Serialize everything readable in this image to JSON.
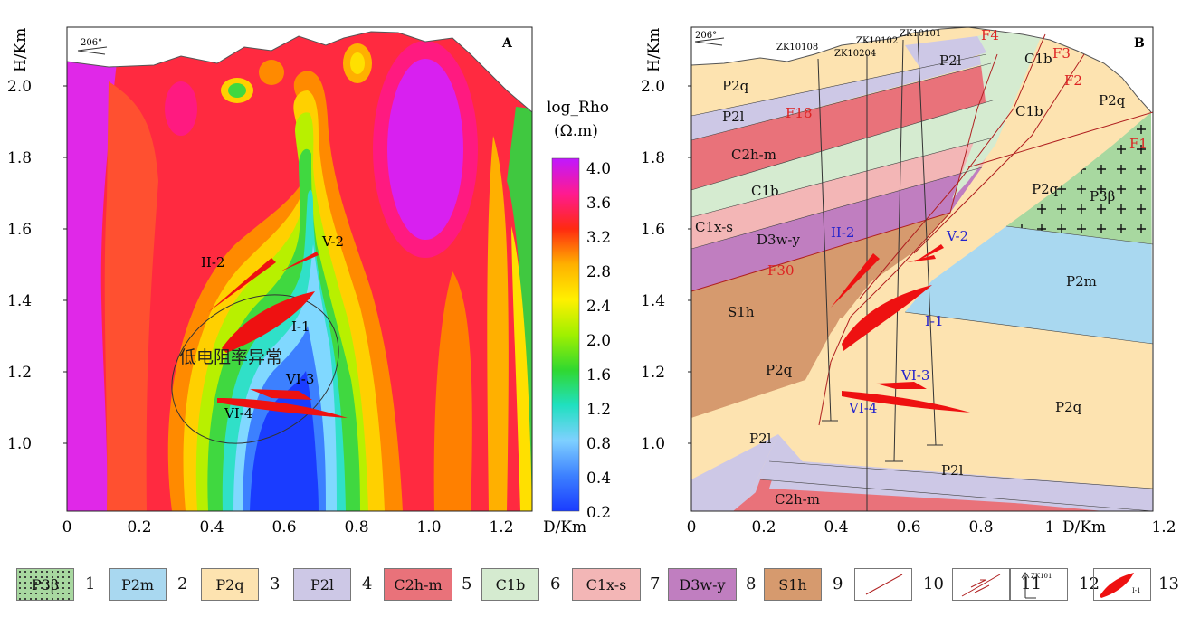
{
  "panelA": {
    "label": "A",
    "azimuth": "206°",
    "y_axis_title": "H/Km",
    "x_axis_title": "D/Km",
    "y_ticks": [
      "1.0",
      "1.2",
      "1.4",
      "1.6",
      "1.8",
      "2.0"
    ],
    "x_ticks": [
      "0",
      "0.2",
      "0.4",
      "0.6",
      "0.8",
      "1.0",
      "1.2"
    ],
    "colorbar_title": "log_Rho",
    "colorbar_unit": "(Ω.m)",
    "colorbar_ticks": [
      "0.2",
      "0.4",
      "0.8",
      "1.2",
      "1.6",
      "2.0",
      "2.4",
      "2.8",
      "3.2",
      "3.6",
      "4.0"
    ],
    "anomaly_text": "低电阻率异常",
    "ore_labels": [
      "II-2",
      "V-2",
      "I-1",
      "VI-3",
      "VI-4"
    ]
  },
  "panelB": {
    "label": "B",
    "azimuth": "206°",
    "y_axis_title": "H/Km",
    "x_axis_title": "D/Km",
    "y_ticks": [
      "1.0",
      "1.2",
      "1.4",
      "1.6",
      "1.8",
      "2.0"
    ],
    "x_ticks": [
      "0",
      "0.2",
      "0.4",
      "0.6",
      "0.8",
      "1",
      "1.2"
    ],
    "boreholes": [
      "ZK10108",
      "ZK10204",
      "ZK10102",
      "ZK10101"
    ],
    "faults": [
      "F4",
      "F3",
      "F2",
      "F1",
      "F18",
      "F30"
    ],
    "strata_labels": {
      "p2q_top": "P2q",
      "p2l_top": "P2l",
      "c2hm": "C2h-m",
      "c1b_left": "C1b",
      "c1xs": "C1x-s",
      "d3wy": "D3w-y",
      "s1h": "S1h",
      "p2q_mid": "P2q",
      "p2l_bot": "P2l",
      "c2hm_bot": "C2h-m",
      "p2l_bot2": "P2l",
      "c1b_top": "C1b",
      "c1b_top2": "C1b",
      "p2l_top2": "P2l",
      "p2q_right": "P2q",
      "p2q_center": "P2q",
      "p3b": "P3β",
      "p2m": "P2m",
      "p2q_low": "P2q"
    },
    "ore_labels": [
      "II-2",
      "V-2",
      "I-1",
      "VI-3",
      "VI-4"
    ]
  },
  "legend": [
    {
      "text": "P3β",
      "num": "1"
    },
    {
      "text": "P2m",
      "num": "2"
    },
    {
      "text": "P2q",
      "num": "3"
    },
    {
      "text": "P2l",
      "num": "4"
    },
    {
      "text": "C2h-m",
      "num": "5"
    },
    {
      "text": "C1b",
      "num": "6"
    },
    {
      "text": "C1x-s",
      "num": "7"
    },
    {
      "text": "D3w-y",
      "num": "8"
    },
    {
      "text": "S1h",
      "num": "9"
    },
    {
      "text": "",
      "num": "10"
    },
    {
      "text": "",
      "num": "11"
    },
    {
      "text": "ZK101",
      "num": "12"
    },
    {
      "text": "I-1",
      "num": "13"
    }
  ],
  "colors": {
    "P3b": "#a8d8a0",
    "P2m": "#a9d8f0",
    "P2q": "#fde3b0",
    "P2l": "#cdc8e6",
    "C2hm": "#e9727a",
    "C1b": "#d5ebd0",
    "C1xs": "#f3b6b6",
    "D3wy": "#c07ec0",
    "S1h": "#d69a6e",
    "ore": "#ee1111",
    "fault": "#b02020",
    "blueText": "#2222cc",
    "redText": "#dd2222"
  }
}
